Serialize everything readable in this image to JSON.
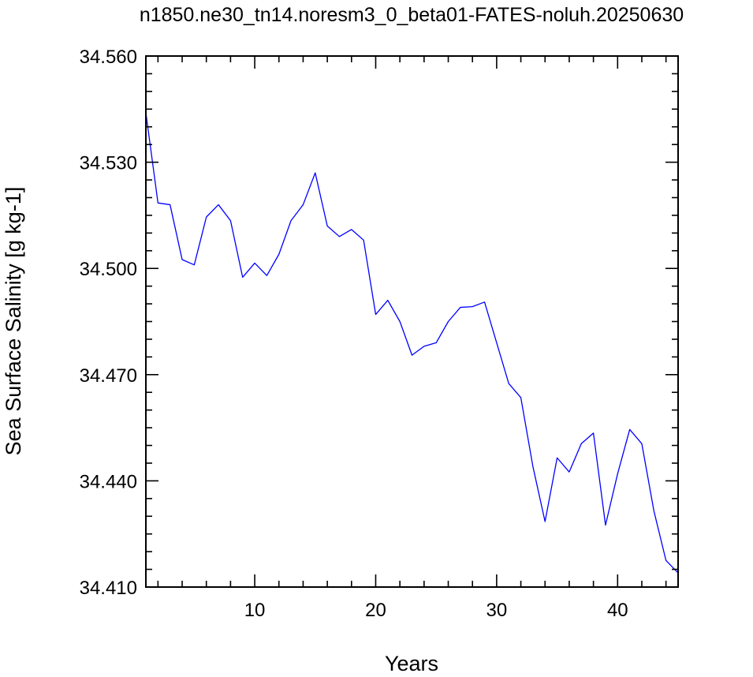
{
  "chart_data": {
    "type": "line",
    "title": "n1850.ne30_tn14.noresm3_0_beta01-FATES-noluh.20250630",
    "xlabel": "Years",
    "ylabel": "Sea Surface Salinity [g kg-1]",
    "xlim": [
      1,
      45
    ],
    "ylim": [
      34.41,
      34.56
    ],
    "xticks": [
      10,
      20,
      30,
      40
    ],
    "xtick_labels": [
      "10",
      "20",
      "30",
      "40"
    ],
    "yticks": [
      34.41,
      34.44,
      34.47,
      34.5,
      34.53,
      34.56
    ],
    "ytick_labels": [
      "34.410",
      "34.440",
      "34.470",
      "34.500",
      "34.530",
      "34.560"
    ],
    "grid": false,
    "legend": "none",
    "series": [
      {
        "color": "#0000ff",
        "x": [
          1,
          2,
          3,
          4,
          5,
          6,
          7,
          8,
          9,
          10,
          11,
          12,
          13,
          14,
          15,
          16,
          17,
          18,
          19,
          20,
          21,
          22,
          23,
          24,
          25,
          26,
          27,
          28,
          29,
          30,
          31,
          32,
          33,
          34,
          35,
          36,
          37,
          38,
          39,
          40,
          41,
          42,
          43,
          44,
          45
        ],
        "y": [
          34.544,
          34.5185,
          34.518,
          34.5025,
          34.501,
          34.5145,
          34.518,
          34.5135,
          34.4975,
          34.5015,
          34.498,
          34.504,
          34.5135,
          34.518,
          34.527,
          34.512,
          34.509,
          34.511,
          34.508,
          34.487,
          34.491,
          34.485,
          34.4755,
          34.478,
          34.479,
          34.485,
          34.489,
          34.4892,
          34.4905,
          34.479,
          34.4675,
          34.4635,
          34.444,
          34.4285,
          34.4465,
          34.4425,
          34.4505,
          34.4535,
          34.4275,
          34.442,
          34.4545,
          34.4505,
          34.4315,
          34.4175,
          34.414
        ]
      }
    ]
  }
}
